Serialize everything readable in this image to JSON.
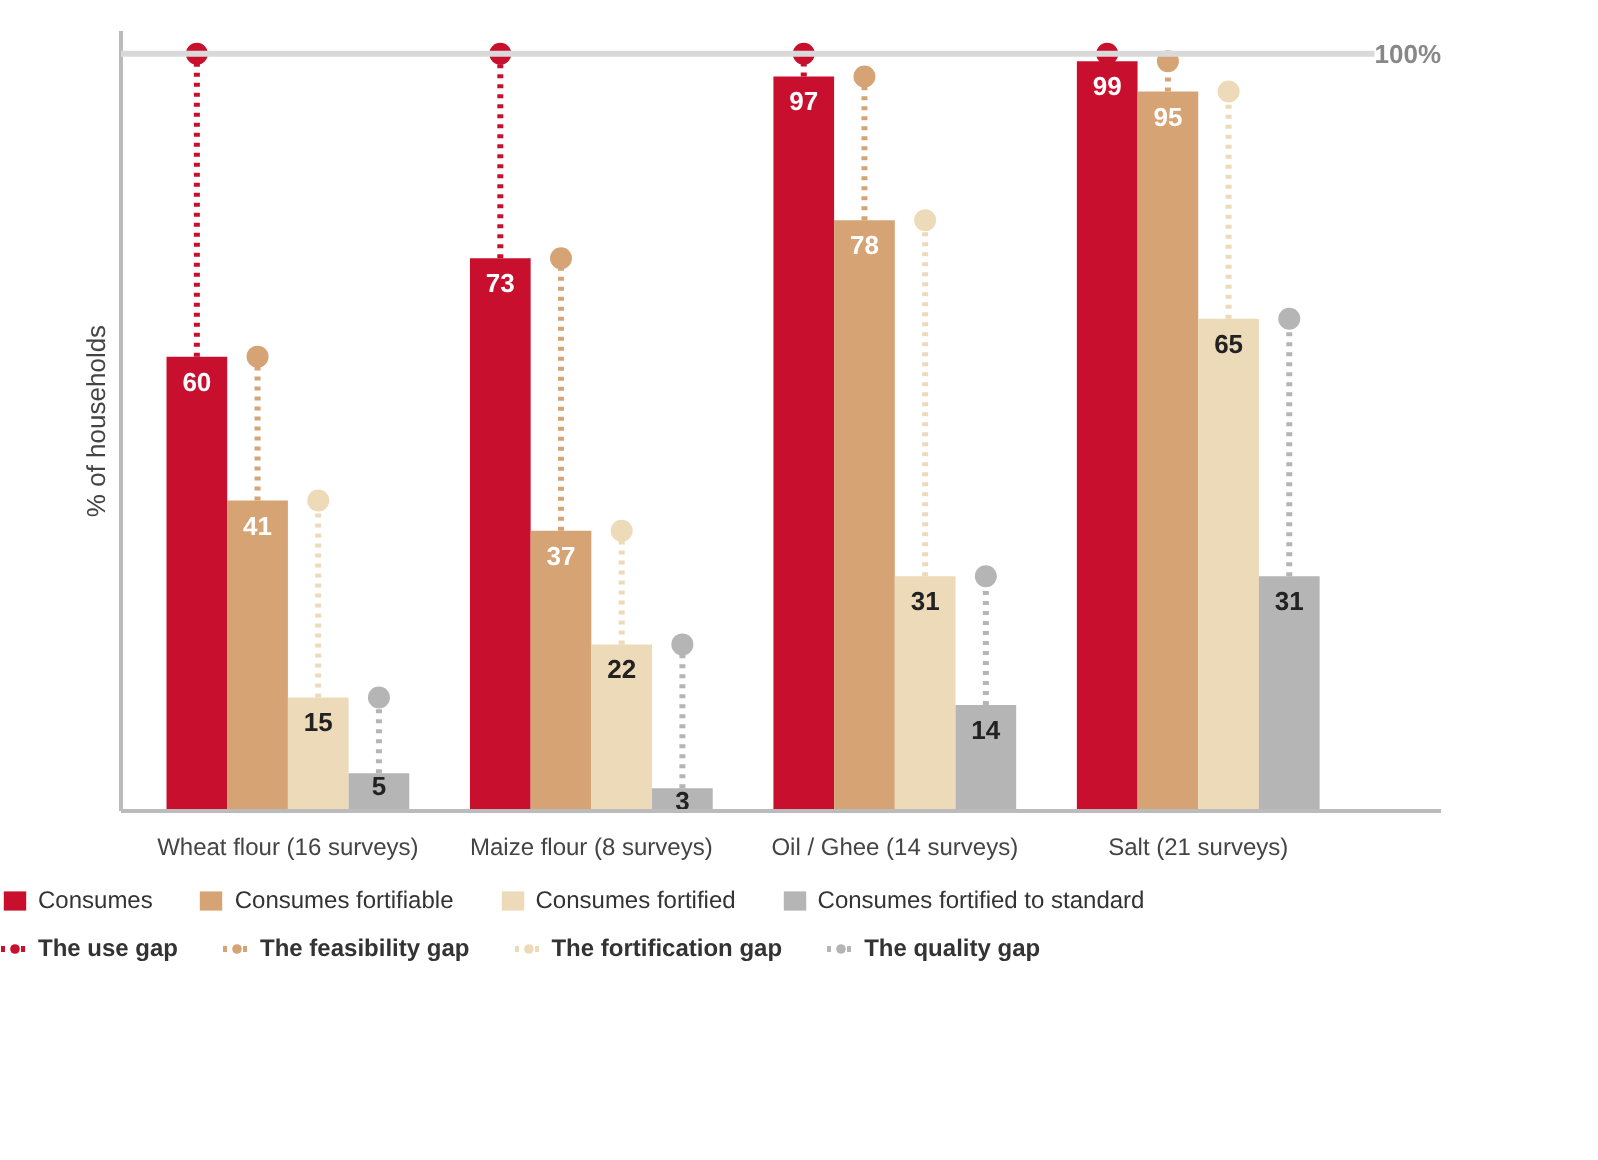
{
  "chart_data": {
    "type": "bar",
    "ylabel": "% of households",
    "categories": [
      "Wheat flour (16 surveys)",
      "Maize flour (8 surveys)",
      "Oil / Ghee (14 surveys)",
      "Salt (21 surveys)"
    ],
    "series": [
      {
        "name": "Consumes",
        "color": "#c8102e",
        "values": [
          60,
          73,
          97,
          99
        ]
      },
      {
        "name": "Consumes fortifiable",
        "color": "#d5a374",
        "values": [
          41,
          37,
          78,
          95
        ]
      },
      {
        "name": "Consumes fortified",
        "color": "#ecdab9",
        "values": [
          15,
          22,
          31,
          65
        ]
      },
      {
        "name": "Consumes fortified to standard",
        "color": "#b5b5b5",
        "values": [
          5,
          3,
          14,
          31
        ]
      },
      {
        "name": "The use gap",
        "color": "#c8102e",
        "type": "scatter",
        "line_style": "dotted",
        "marker": "circle",
        "values": [
          100,
          100,
          100,
          100
        ],
        "value_labels": [
          null,
          null,
          null,
          null
        ]
      },
      {
        "name": "The feasibility gap",
        "color": "#d5a374",
        "type": "scatter",
        "line_style": "dotted",
        "marker": "circle",
        "values": [
          60,
          73,
          97,
          99
        ],
        "value_labels": [
          null,
          null,
          null,
          null
        ]
      },
      {
        "name": "The fortification gap",
        "color": "#ecdab9",
        "type": "scatter",
        "line_style": "dotted",
        "marker": "circle",
        "values": [
          41,
          37,
          78,
          95
        ],
        "value_labels": [
          null,
          null,
          null,
          null
        ]
      },
      {
        "name": "The quality gap",
        "color": "#b5b5b5",
        "type": "scatter",
        "line_style": "dotted",
        "marker": "circle",
        "values": [
          15,
          22,
          31,
          65
        ],
        "value_labels": [
          null,
          null,
          null,
          null
        ]
      }
    ],
    "ylim": [
      0,
      103
    ],
    "tick_labels": "x",
    "data_labels": true,
    "grid": false,
    "legend": "bottom",
    "ref_lines": [
      {
        "axis": "y",
        "value": 100,
        "label": "100%",
        "color": "#d9d9d9"
      }
    ]
  }
}
